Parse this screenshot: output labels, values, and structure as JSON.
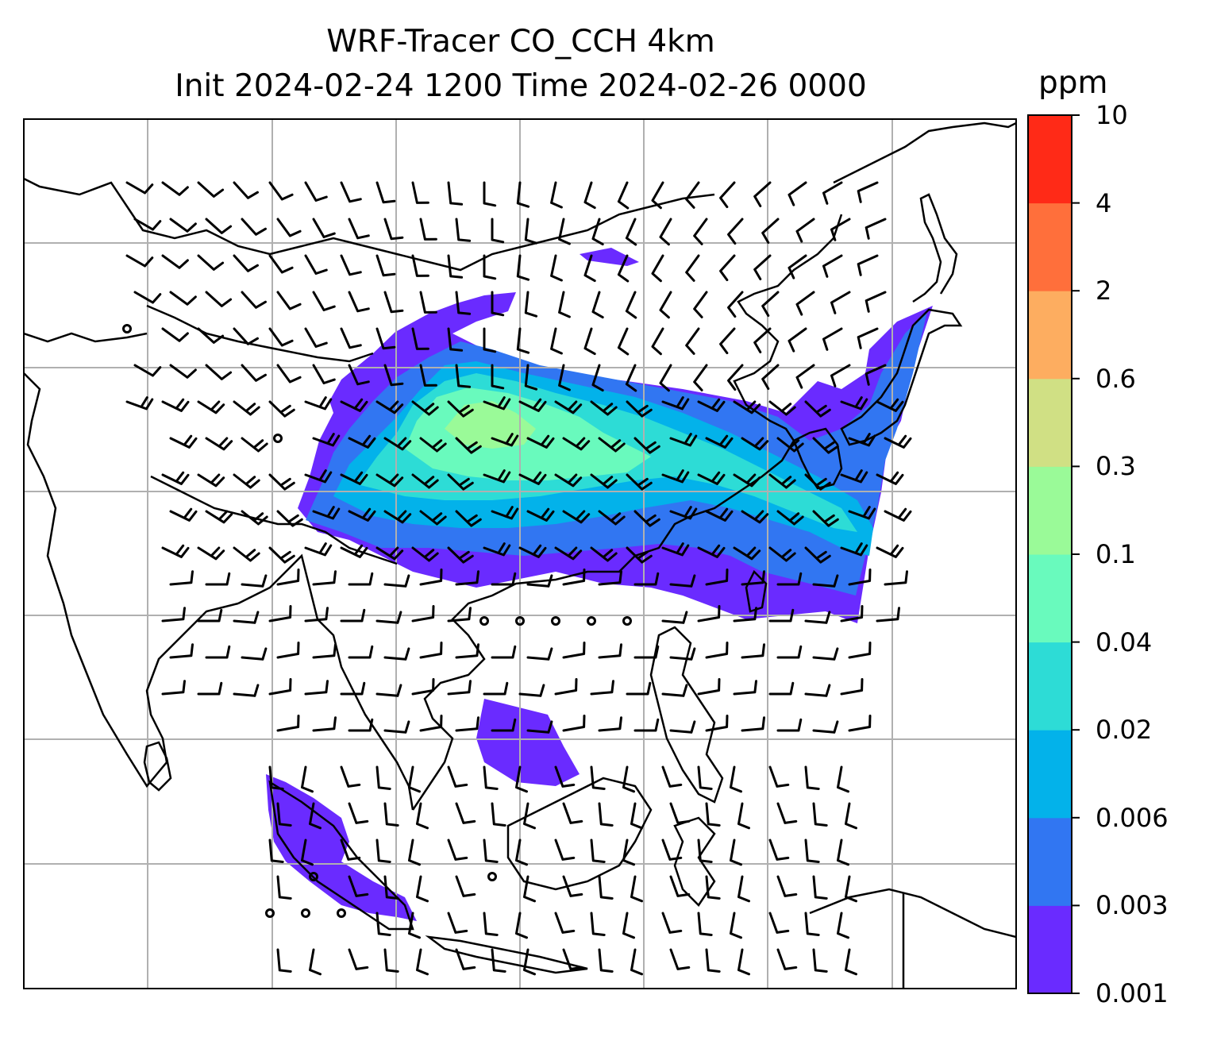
{
  "title": {
    "line1": "WRF-Tracer CO_CCH 4km",
    "line2": "Init 2024-02-24 1200 Time 2024-02-26 0000"
  },
  "colorbar": {
    "unit": "ppm",
    "levels": [
      "0.001",
      "0.003",
      "0.006",
      "0.02",
      "0.04",
      "0.1",
      "0.3",
      "0.6",
      "2",
      "4",
      "10"
    ],
    "colors": [
      "#6a2bff",
      "#3176f2",
      "#03b2ea",
      "#2ddcd6",
      "#69fabd",
      "#9afa98",
      "#d0e084",
      "#fdad60",
      "#ff6f3b",
      "#ff2a17"
    ]
  },
  "map": {
    "gridline_color": "#b0b0b0",
    "coastline_color": "#000000",
    "plume_description": "tracer plume east-southeast from Indochina/S China across East China Sea to Japan; secondary plume over Sumatra and S. China Sea",
    "wind_barbs": true
  }
}
